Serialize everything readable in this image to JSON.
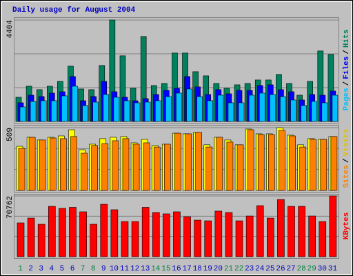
{
  "chart_data": [
    {
      "type": "bar",
      "title": "Daily usage for August 2004",
      "legend_separator": "/",
      "categories": [
        "1",
        "2",
        "3",
        "4",
        "5",
        "6",
        "7",
        "8",
        "9",
        "10",
        "11",
        "12",
        "13",
        "14",
        "15",
        "16",
        "17",
        "18",
        "19",
        "20",
        "21",
        "22",
        "23",
        "24",
        "25",
        "26",
        "27",
        "28",
        "29",
        "30",
        "31"
      ],
      "category_colors": [
        "#008040",
        "#0000c0",
        "#0000c0",
        "#0000c0",
        "#0000c0",
        "#0000c0",
        "#008040",
        "#008040",
        "#0000c0",
        "#0000c0",
        "#0000c0",
        "#0000c0",
        "#0000c0",
        "#008040",
        "#008040",
        "#0000c0",
        "#0000c0",
        "#0000c0",
        "#0000c0",
        "#0000c0",
        "#008040",
        "#008040",
        "#0000c0",
        "#0000c0",
        "#0000c0",
        "#0000c0",
        "#0000c0",
        "#008040",
        "#008040",
        "#0000c0",
        "#0000c0"
      ],
      "ylim": [
        0,
        4404
      ],
      "yticks": [
        4404
      ],
      "series": [
        {
          "name": "Hits",
          "color": "#00805c",
          "values": [
            1050,
            1530,
            1380,
            1530,
            1740,
            2400,
            1410,
            1380,
            2430,
            4404,
            2850,
            1440,
            3690,
            1560,
            1650,
            2970,
            2970,
            2160,
            1980,
            1650,
            1440,
            1590,
            1650,
            1800,
            1800,
            2040,
            1650,
            1140,
            1740,
            3060,
            2910
          ]
        },
        {
          "name": "Files",
          "color": "#0000ff",
          "values": [
            810,
            1140,
            1080,
            1230,
            1290,
            1950,
            900,
            1080,
            1740,
            1290,
            1050,
            900,
            990,
            1170,
            1350,
            1440,
            1950,
            1500,
            1170,
            1380,
            1200,
            1350,
            1350,
            1560,
            1590,
            1380,
            1290,
            930,
            1170,
            1140,
            1320
          ]
        },
        {
          "name": "Pages",
          "color": "#00c0ff",
          "values": [
            630,
            870,
            900,
            900,
            1110,
            1530,
            690,
            840,
            1170,
            1050,
            900,
            810,
            840,
            900,
            1080,
            1230,
            1410,
            1080,
            900,
            1140,
            810,
            810,
            1140,
            1230,
            1170,
            1080,
            930,
            690,
            870,
            810,
            1140
          ]
        }
      ]
    },
    {
      "type": "bar",
      "legend_separator": "/",
      "ylim": [
        0,
        509
      ],
      "yticks": [
        509
      ],
      "series": [
        {
          "name": "Visits",
          "color": "#ffff00",
          "values": [
            358,
            431,
            409,
            431,
            442,
            492,
            330,
            375,
            420,
            431,
            437,
            386,
            414,
            364,
            375,
            464,
            459,
            470,
            370,
            431,
            409,
            370,
            498,
            459,
            459,
            509,
            448,
            370,
            420,
            414,
            437
          ]
        },
        {
          "name": "Sites",
          "color": "#ff8000",
          "values": [
            341,
            431,
            409,
            425,
            420,
            437,
            302,
            364,
            380,
            403,
            420,
            375,
            386,
            352,
            375,
            464,
            459,
            470,
            352,
            431,
            392,
            370,
            492,
            453,
            453,
            487,
            442,
            352,
            414,
            414,
            437
          ]
        }
      ]
    },
    {
      "type": "bar",
      "ylim": [
        0,
        70762
      ],
      "yticks": [
        70762
      ],
      "series": [
        {
          "name": "KBytes",
          "color": "#ff0000",
          "values": [
            39400,
            45000,
            37800,
            58700,
            56300,
            57500,
            52300,
            37800,
            61100,
            54700,
            41000,
            41000,
            57500,
            51500,
            49900,
            52300,
            46600,
            42600,
            41800,
            53100,
            51500,
            41800,
            47400,
            59500,
            45000,
            66700,
            58700,
            58700,
            47400,
            41000,
            70762
          ]
        }
      ]
    }
  ]
}
